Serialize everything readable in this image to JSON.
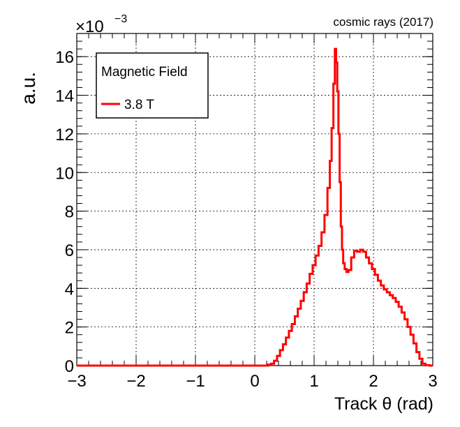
{
  "chart_data": {
    "type": "line",
    "annotation": "cosmic rays (2017)",
    "xlabel": "Track θ (rad)",
    "ylabel": "a.u.",
    "y_multiplier": "×10",
    "y_multiplier_exponent": "−3",
    "xlim": [
      -3,
      3
    ],
    "ylim": [
      0,
      17.2
    ],
    "x_ticks": [
      -3,
      -2,
      -1,
      0,
      1,
      2,
      3
    ],
    "x_tick_labels": [
      "−3",
      "−2",
      "−1",
      "0",
      "1",
      "2",
      "3"
    ],
    "y_ticks": [
      0,
      2,
      4,
      6,
      8,
      10,
      12,
      14,
      16
    ],
    "y_tick_labels": [
      "0",
      "2",
      "4",
      "6",
      "8",
      "10",
      "12",
      "14",
      "16"
    ],
    "grid": true,
    "legend": {
      "title": "Magnetic Field",
      "placement": "top-left",
      "entries": [
        {
          "label": "3.8 T",
          "color": "#ff0000"
        }
      ]
    },
    "series": [
      {
        "name": "3.8 T",
        "color": "#ff0000",
        "x": [
          -3.0,
          0.2,
          0.25,
          0.3,
          0.35,
          0.4,
          0.45,
          0.5,
          0.55,
          0.6,
          0.65,
          0.7,
          0.75,
          0.8,
          0.85,
          0.9,
          0.95,
          1.0,
          1.05,
          1.1,
          1.15,
          1.2,
          1.25,
          1.28,
          1.31,
          1.34,
          1.36,
          1.38,
          1.4,
          1.42,
          1.44,
          1.46,
          1.48,
          1.5,
          1.53,
          1.56,
          1.6,
          1.65,
          1.7,
          1.75,
          1.8,
          1.85,
          1.9,
          1.95,
          2.0,
          2.05,
          2.1,
          2.15,
          2.2,
          2.25,
          2.3,
          2.35,
          2.4,
          2.45,
          2.5,
          2.55,
          2.6,
          2.65,
          2.7,
          2.75,
          2.8,
          2.85,
          2.9,
          3.0
        ],
        "values": [
          0.0,
          0.0,
          0.05,
          0.1,
          0.25,
          0.5,
          0.8,
          1.1,
          1.45,
          1.8,
          2.15,
          2.55,
          2.95,
          3.35,
          3.8,
          4.25,
          4.75,
          5.2,
          5.7,
          6.2,
          6.9,
          7.8,
          9.2,
          10.6,
          12.3,
          14.6,
          16.4,
          15.7,
          14.2,
          12.0,
          9.5,
          7.2,
          6.0,
          5.3,
          5.0,
          4.85,
          4.95,
          5.6,
          5.95,
          5.9,
          6.0,
          5.9,
          5.6,
          5.3,
          5.0,
          4.7,
          4.4,
          4.15,
          3.95,
          3.8,
          3.65,
          3.5,
          3.3,
          3.05,
          2.75,
          2.4,
          2.0,
          1.6,
          1.15,
          0.7,
          0.35,
          0.1,
          0.02,
          0.0
        ]
      }
    ]
  }
}
